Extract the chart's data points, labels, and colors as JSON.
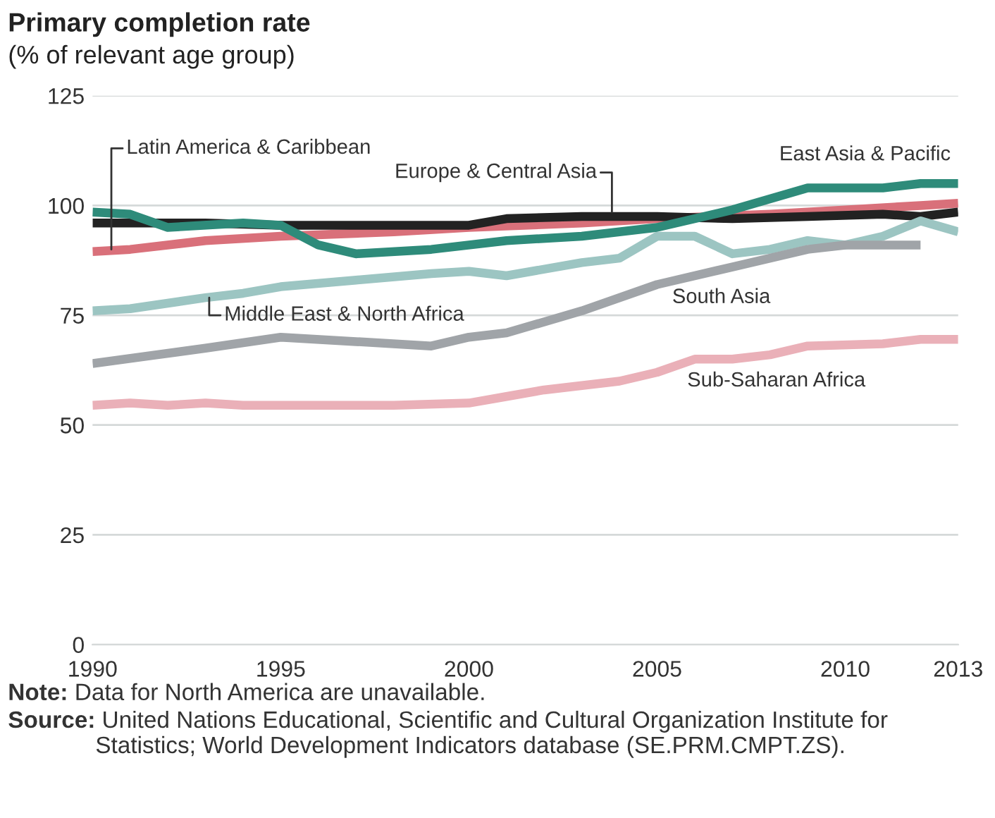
{
  "chart_data": {
    "type": "line",
    "title": "Primary completion rate",
    "subtitle": "(% of relevant age group)",
    "xlim": [
      1990,
      2013
    ],
    "xticks": [
      1990,
      1995,
      2000,
      2005,
      2010,
      2013
    ],
    "ylim": [
      0,
      125
    ],
    "yticks": [
      0,
      25,
      50,
      75,
      100,
      125
    ],
    "grid": "y",
    "legend": false,
    "line_style": "solid",
    "marker": "none",
    "series": [
      {
        "name": "Latin America & Caribbean",
        "color": "#d9707a",
        "x": [
          1990,
          1991,
          1993,
          1995,
          1998,
          2000,
          2003,
          2005,
          2008,
          2010,
          2012,
          2013
        ],
        "values": [
          89.5,
          90,
          92,
          93,
          94,
          95,
          96,
          97,
          98,
          99,
          100,
          100.5
        ]
      },
      {
        "name": "Europe & Central Asia",
        "color": "#222222",
        "x": [
          1990,
          1993,
          1995,
          1998,
          2000,
          2001,
          2003,
          2005,
          2007,
          2009,
          2011,
          2012,
          2013
        ],
        "values": [
          96,
          96,
          95.5,
          95.5,
          95.5,
          97,
          97.5,
          97.5,
          97,
          97.5,
          98,
          97.5,
          98.5
        ]
      },
      {
        "name": "East Asia & Pacific",
        "color": "#2e8b7a",
        "x": [
          1990,
          1991,
          1992,
          1994,
          1995,
          1996,
          1997,
          1999,
          2001,
          2003,
          2005,
          2007,
          2009,
          2011,
          2012,
          2013
        ],
        "values": [
          98.5,
          98,
          95,
          96,
          95.5,
          91,
          89,
          90,
          92,
          93,
          95,
          99,
          104,
          104,
          105,
          105
        ]
      },
      {
        "name": "Middle East & North Africa",
        "color": "#9cc5c2",
        "x": [
          1990,
          1991,
          1993,
          1994,
          1995,
          1997,
          1999,
          2000,
          2001,
          2003,
          2004,
          2005,
          2006,
          2007,
          2008,
          2009,
          2010,
          2011,
          2012,
          2013
        ],
        "values": [
          76,
          76.5,
          79,
          80,
          81.5,
          83,
          84.5,
          85,
          84,
          87,
          88,
          93,
          93,
          89,
          90,
          92,
          91,
          93,
          96.5,
          94
        ]
      },
      {
        "name": "South Asia",
        "color": "#a0a4a8",
        "x": [
          1990,
          1993,
          1995,
          1997,
          1999,
          2000,
          2001,
          2003,
          2005,
          2007,
          2009,
          2010,
          2012
        ],
        "values": [
          64,
          67.5,
          70,
          69,
          68,
          70,
          71,
          76,
          82,
          86,
          90,
          91,
          91
        ]
      },
      {
        "name": "Sub-Saharan Africa",
        "color": "#eab0b8",
        "x": [
          1990,
          1991,
          1992,
          1993,
          1994,
          1996,
          1998,
          2000,
          2001,
          2002,
          2003,
          2004,
          2005,
          2006,
          2007,
          2008,
          2009,
          2011,
          2012,
          2013
        ],
        "values": [
          54.5,
          55,
          54.5,
          55,
          54.5,
          54.5,
          54.5,
          55,
          56.5,
          58,
          59,
          60,
          62,
          65,
          65,
          66,
          68,
          68.5,
          69.5,
          69.5
        ]
      }
    ],
    "annotations": [
      "Note: Data for North America are unavailable.",
      "Source: United Nations Educational, Scientific and Cultural Organization Institute for Statistics; World Development Indicators database (SE.PRM.CMPT.ZS)."
    ]
  }
}
